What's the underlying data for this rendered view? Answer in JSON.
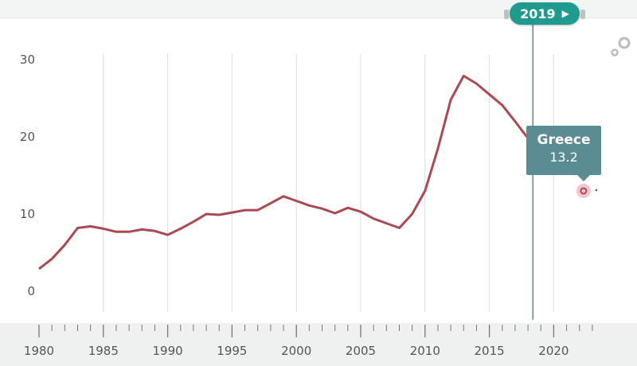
{
  "controls": {
    "year_label": "2019",
    "play_glyph": "▶"
  },
  "tooltip": {
    "country": "Greece",
    "value": "13.2"
  },
  "icons": {
    "settings": "gear-icon",
    "play": "play-icon"
  },
  "colors": {
    "line": "#a94a52",
    "accent": "#1f9a8f",
    "tooltip_bg": "#5c8c93",
    "marker_halo": "#f2b8c0"
  },
  "chart_data": {
    "type": "line",
    "title": "",
    "xlabel": "",
    "ylabel": "",
    "xlim": [
      1978,
      2025
    ],
    "ylim": [
      -1,
      31
    ],
    "x_ticks": [
      1980,
      1985,
      1990,
      1995,
      2000,
      2005,
      2010,
      2015,
      2020
    ],
    "y_ticks": [
      0,
      10,
      20,
      30
    ],
    "grid": true,
    "selected_year": 2019,
    "series": [
      {
        "name": "Greece",
        "x": [
          1980,
          1981,
          1982,
          1983,
          1984,
          1985,
          1986,
          1987,
          1988,
          1989,
          1990,
          1991,
          1992,
          1993,
          1994,
          1995,
          1996,
          1997,
          1998,
          1999,
          2000,
          2001,
          2002,
          2003,
          2004,
          2005,
          2006,
          2007,
          2008,
          2009,
          2010,
          2011,
          2012,
          2013,
          2014,
          2015,
          2016,
          2017,
          2018
        ],
        "y": [
          2.9,
          4.2,
          6.0,
          8.2,
          8.4,
          8.1,
          7.7,
          7.7,
          8.0,
          7.8,
          7.3,
          8.1,
          9.0,
          10.0,
          9.9,
          10.2,
          10.5,
          10.5,
          11.4,
          12.3,
          11.7,
          11.1,
          10.7,
          10.1,
          10.8,
          10.3,
          9.4,
          8.8,
          8.2,
          10.0,
          13.0,
          18.5,
          24.8,
          27.9,
          26.9,
          25.5,
          24.1,
          22.0,
          19.8
        ]
      }
    ],
    "highlight_point": {
      "x": 2023,
      "y": 13.2
    }
  }
}
